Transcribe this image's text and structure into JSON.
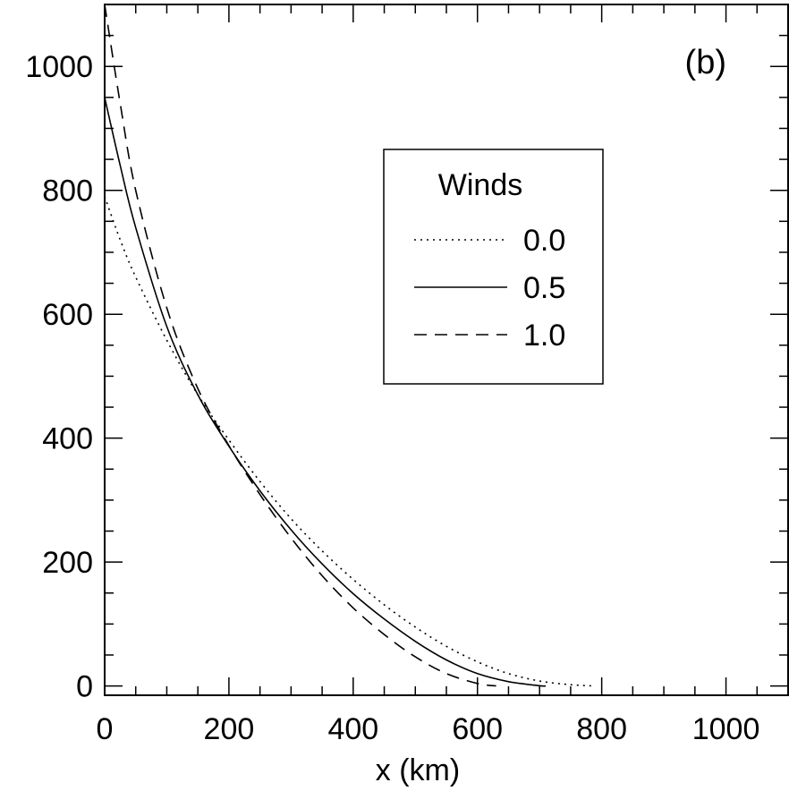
{
  "chart_data": {
    "type": "line",
    "title": "",
    "panel_label": "(b)",
    "xlabel": "x (km)",
    "ylabel": "",
    "xlim": [
      0,
      1100
    ],
    "ylim": [
      -15,
      1100
    ],
    "x_ticks": [
      0,
      200,
      400,
      600,
      800,
      1000
    ],
    "y_ticks": [
      0,
      200,
      400,
      600,
      800,
      1000
    ],
    "x_minor_step": 50,
    "y_minor_step": 50,
    "grid": false,
    "legend": {
      "title": "Winds",
      "placement": "upper-center-right",
      "entries": [
        {
          "label": "0.0",
          "style": "dotted"
        },
        {
          "label": "0.5",
          "style": "solid"
        },
        {
          "label": "1.0",
          "style": "dashed"
        }
      ]
    },
    "series": [
      {
        "name": "0.0",
        "style": "dotted",
        "x": [
          0,
          25,
          50,
          100,
          150,
          200,
          250,
          300,
          350,
          400,
          450,
          500,
          550,
          600,
          650,
          700,
          750,
          790
        ],
        "y": [
          790,
          720,
          660,
          558,
          470,
          397,
          330,
          270,
          218,
          172,
          131,
          95,
          64,
          39,
          20,
          8,
          2,
          0
        ]
      },
      {
        "name": "0.5",
        "style": "solid",
        "x": [
          0,
          25,
          50,
          100,
          150,
          200,
          250,
          300,
          350,
          400,
          450,
          500,
          550,
          600,
          650,
          700,
          710
        ],
        "y": [
          950,
          840,
          740,
          580,
          470,
          387,
          315,
          252,
          197,
          149,
          108,
          72,
          42,
          20,
          7,
          0.5,
          0
        ]
      },
      {
        "name": "1.0",
        "style": "dashed",
        "x": [
          0,
          25,
          50,
          100,
          150,
          200,
          250,
          300,
          350,
          400,
          450,
          500,
          550,
          600,
          630
        ],
        "y": [
          1100,
          940,
          800,
          610,
          480,
          388,
          309,
          239,
          178,
          126,
          83,
          47,
          20,
          4,
          0
        ]
      }
    ]
  }
}
